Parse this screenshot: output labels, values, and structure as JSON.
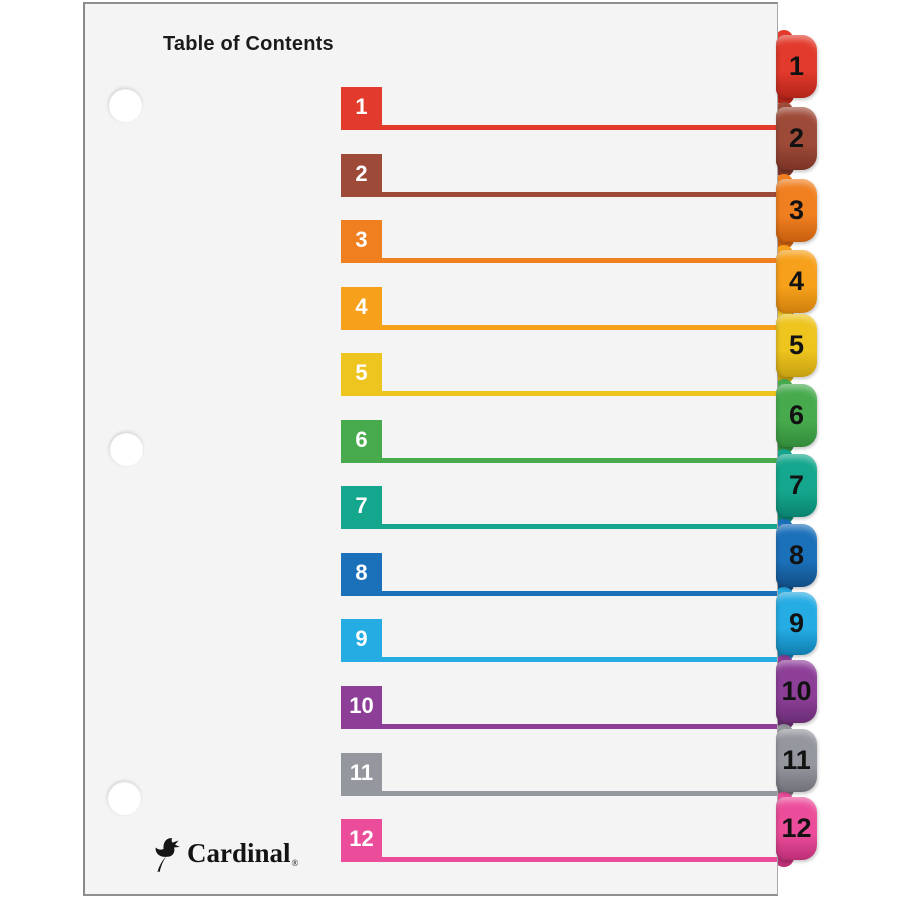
{
  "sheet": {
    "title": "Table of Contents",
    "brand": {
      "name": "Cardinal",
      "registered": "®",
      "icon": "cardinal-bird-icon"
    }
  },
  "dividers": [
    {
      "number": "1",
      "color": "#e23a2c",
      "dark": "#b3251a"
    },
    {
      "number": "2",
      "color": "#9e4a38",
      "dark": "#7b3426"
    },
    {
      "number": "3",
      "color": "#f07f20",
      "dark": "#c75f0e"
    },
    {
      "number": "4",
      "color": "#f6a01b",
      "dark": "#d0800d"
    },
    {
      "number": "5",
      "color": "#eec41f",
      "dark": "#c7a011"
    },
    {
      "number": "6",
      "color": "#47ab4e",
      "dark": "#338b3b"
    },
    {
      "number": "7",
      "color": "#14a78d",
      "dark": "#0b8370"
    },
    {
      "number": "8",
      "color": "#1b70ba",
      "dark": "#124e86"
    },
    {
      "number": "9",
      "color": "#25ace3",
      "dark": "#117fb0"
    },
    {
      "number": "10",
      "color": "#8d3f98",
      "dark": "#6a2d74"
    },
    {
      "number": "11",
      "color": "#95979e",
      "dark": "#717179"
    },
    {
      "number": "12",
      "color": "#ec4d9b",
      "dark": "#bc2f77"
    }
  ],
  "colors": {
    "page_background": "#ffffff",
    "sheet_background": "#f4f4f4",
    "sheet_border": "#8f8f8f",
    "row_number_text": "#ffffff",
    "tab_number_text": "#121212",
    "title_text": "#1b1b1b"
  }
}
